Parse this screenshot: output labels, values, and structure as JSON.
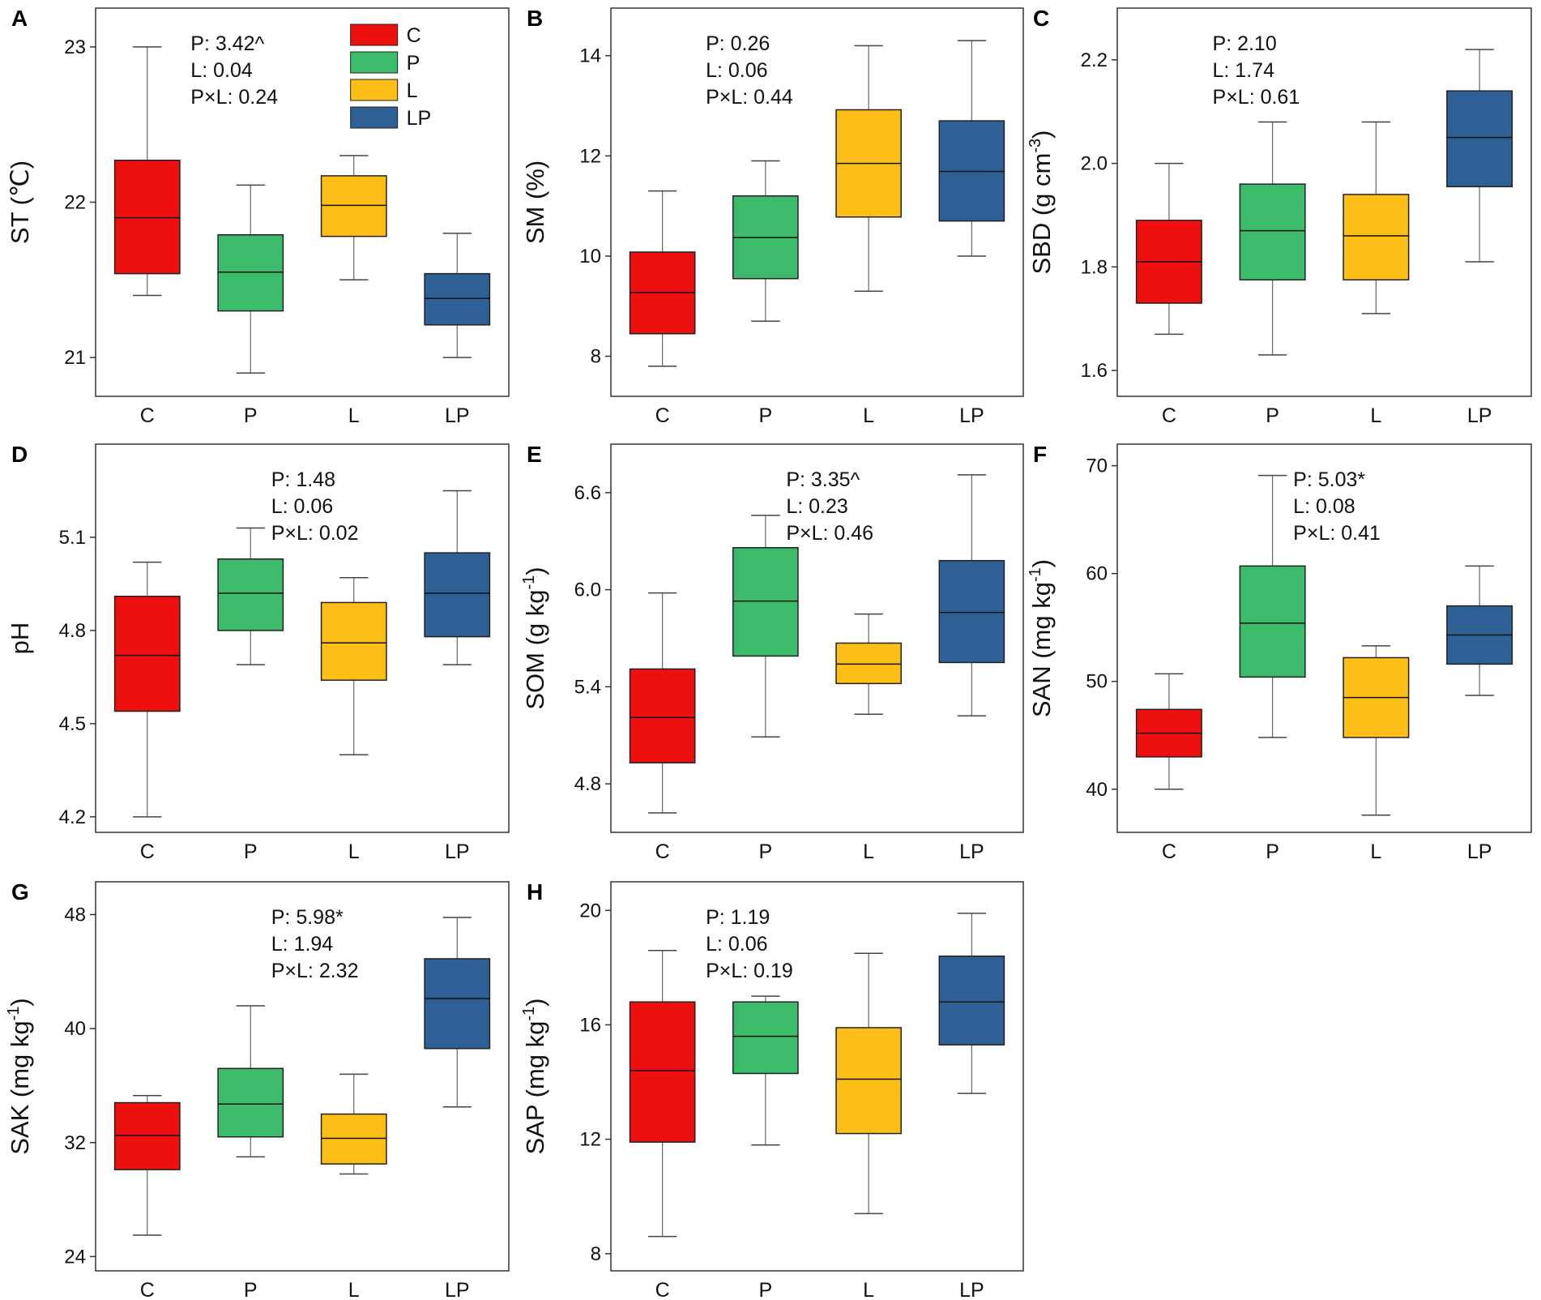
{
  "figure": {
    "legend": [
      {
        "label": "C",
        "color": "#ee0f0f"
      },
      {
        "label": "P",
        "color": "#3cbc6a"
      },
      {
        "label": "L",
        "color": "#fdbf17"
      },
      {
        "label": "LP",
        "color": "#2e5f95"
      }
    ]
  },
  "chart_data": [
    {
      "type": "box",
      "panel": "A",
      "ylabel": "ST (℃)",
      "ylabel_superscripts": [],
      "categories": [
        "C",
        "P",
        "L",
        "LP"
      ],
      "yticks": [
        21,
        22,
        23
      ],
      "ytick_labels": [
        "21",
        "22",
        "23"
      ],
      "ylim": [
        20.75,
        23.25
      ],
      "boxes": [
        {
          "min": 21.4,
          "q1": 21.54,
          "median": 21.9,
          "q3": 22.27,
          "max": 23.0
        },
        {
          "min": 20.9,
          "q1": 21.3,
          "median": 21.55,
          "q3": 21.79,
          "max": 22.11
        },
        {
          "min": 21.5,
          "q1": 21.78,
          "median": 21.98,
          "q3": 22.17,
          "max": 22.3
        },
        {
          "min": 21.0,
          "q1": 21.21,
          "median": 21.38,
          "q3": 21.54,
          "max": 21.8
        }
      ],
      "stats": [
        "P: 3.42^",
        "L: 0.04",
        "P×L: 0.24"
      ],
      "stats_pos": "top-left-center",
      "has_legend": true
    },
    {
      "type": "box",
      "panel": "B",
      "ylabel": "SM (%)",
      "ylabel_superscripts": [],
      "categories": [
        "C",
        "P",
        "L",
        "LP"
      ],
      "yticks": [
        8,
        10,
        12,
        14
      ],
      "ytick_labels": [
        "8",
        "10",
        "12",
        "14"
      ],
      "ylim": [
        7.2,
        14.95
      ],
      "boxes": [
        {
          "min": 7.8,
          "q1": 8.45,
          "median": 9.27,
          "q3": 10.08,
          "max": 11.3
        },
        {
          "min": 8.7,
          "q1": 9.55,
          "median": 10.37,
          "q3": 11.2,
          "max": 11.9
        },
        {
          "min": 9.3,
          "q1": 10.78,
          "median": 11.85,
          "q3": 12.92,
          "max": 14.2
        },
        {
          "min": 10.0,
          "q1": 10.7,
          "median": 11.69,
          "q3": 12.7,
          "max": 14.3
        }
      ],
      "stats": [
        "P: 0.26",
        "L: 0.06",
        "P×L: 0.44"
      ],
      "stats_pos": "top-left-center",
      "has_legend": false
    },
    {
      "type": "box",
      "panel": "C",
      "ylabel": "SBD (g cm-3)",
      "ylabel_superscripts": [
        "-3"
      ],
      "categories": [
        "C",
        "P",
        "L",
        "LP"
      ],
      "yticks": [
        1.6,
        1.8,
        2.0,
        2.2
      ],
      "ytick_labels": [
        "1.6",
        "1.8",
        "2.0",
        "2.2"
      ],
      "ylim": [
        1.55,
        2.3
      ],
      "boxes": [
        {
          "min": 1.67,
          "q1": 1.73,
          "median": 1.81,
          "q3": 1.89,
          "max": 2.0
        },
        {
          "min": 1.63,
          "q1": 1.775,
          "median": 1.87,
          "q3": 1.96,
          "max": 2.08
        },
        {
          "min": 1.71,
          "q1": 1.775,
          "median": 1.86,
          "q3": 1.94,
          "max": 2.08
        },
        {
          "min": 1.81,
          "q1": 1.955,
          "median": 2.05,
          "q3": 2.14,
          "max": 2.22
        }
      ],
      "stats": [
        "P: 2.10",
        "L: 1.74",
        "P×L: 0.61"
      ],
      "stats_pos": "top-left-center",
      "has_legend": false
    },
    {
      "type": "box",
      "panel": "D",
      "ylabel": "pH",
      "ylabel_superscripts": [],
      "categories": [
        "C",
        "P",
        "L",
        "LP"
      ],
      "yticks": [
        4.2,
        4.5,
        4.8,
        5.1
      ],
      "ytick_labels": [
        "4.2",
        "4.5",
        "4.8",
        "5.1"
      ],
      "ylim": [
        4.15,
        5.4
      ],
      "boxes": [
        {
          "min": 4.2,
          "q1": 4.54,
          "median": 4.72,
          "q3": 4.91,
          "max": 5.02
        },
        {
          "min": 4.69,
          "q1": 4.8,
          "median": 4.92,
          "q3": 5.03,
          "max": 5.13
        },
        {
          "min": 4.4,
          "q1": 4.64,
          "median": 4.76,
          "q3": 4.89,
          "max": 4.97
        },
        {
          "min": 4.69,
          "q1": 4.78,
          "median": 4.92,
          "q3": 5.05,
          "max": 5.25
        }
      ],
      "stats": [
        "P: 1.48",
        "L: 0.06",
        "P×L: 0.02"
      ],
      "stats_pos": "top-center",
      "has_legend": false
    },
    {
      "type": "box",
      "panel": "E",
      "ylabel": "SOM (g kg-1)",
      "ylabel_superscripts": [
        "-1"
      ],
      "categories": [
        "C",
        "P",
        "L",
        "LP"
      ],
      "yticks": [
        4.8,
        5.4,
        6.0,
        6.6
      ],
      "ytick_labels": [
        "4.8",
        "5.4",
        "6.0",
        "6.6"
      ],
      "ylim": [
        4.5,
        6.9
      ],
      "boxes": [
        {
          "min": 4.62,
          "q1": 4.93,
          "median": 5.21,
          "q3": 5.51,
          "max": 5.98
        },
        {
          "min": 5.09,
          "q1": 5.59,
          "median": 5.93,
          "q3": 6.26,
          "max": 6.46
        },
        {
          "min": 5.23,
          "q1": 5.42,
          "median": 5.54,
          "q3": 5.67,
          "max": 5.85
        },
        {
          "min": 5.22,
          "q1": 5.55,
          "median": 5.86,
          "q3": 6.18,
          "max": 6.71
        }
      ],
      "stats": [
        "P: 3.35^",
        "L: 0.23",
        "P×L: 0.46"
      ],
      "stats_pos": "top-center",
      "has_legend": false
    },
    {
      "type": "box",
      "panel": "F",
      "ylabel": "SAN (mg kg-1)",
      "ylabel_superscripts": [
        "-1"
      ],
      "categories": [
        "C",
        "P",
        "L",
        "LP"
      ],
      "yticks": [
        40,
        50,
        60,
        70
      ],
      "ytick_labels": [
        "40",
        "50",
        "60",
        "70"
      ],
      "ylim": [
        36,
        72
      ],
      "boxes": [
        {
          "min": 40.0,
          "q1": 43.0,
          "median": 45.2,
          "q3": 47.4,
          "max": 50.7
        },
        {
          "min": 44.8,
          "q1": 50.4,
          "median": 55.4,
          "q3": 60.7,
          "max": 69.1
        },
        {
          "min": 37.6,
          "q1": 44.8,
          "median": 48.5,
          "q3": 52.2,
          "max": 53.3
        },
        {
          "min": 48.7,
          "q1": 51.6,
          "median": 54.3,
          "q3": 57.0,
          "max": 60.7
        }
      ],
      "stats": [
        "P: 5.03*",
        "L: 0.08",
        "P×L: 0.41"
      ],
      "stats_pos": "top-center",
      "has_legend": false
    },
    {
      "type": "box",
      "panel": "G",
      "ylabel": "SAK (mg kg-1)",
      "ylabel_superscripts": [
        "-1"
      ],
      "categories": [
        "C",
        "P",
        "L",
        "LP"
      ],
      "yticks": [
        24,
        32,
        40,
        48
      ],
      "ytick_labels": [
        "24",
        "32",
        "40",
        "48"
      ],
      "ylim": [
        23,
        50.3
      ],
      "boxes": [
        {
          "min": 25.5,
          "q1": 30.1,
          "median": 32.5,
          "q3": 34.8,
          "max": 35.3
        },
        {
          "min": 31.0,
          "q1": 32.4,
          "median": 34.7,
          "q3": 37.2,
          "max": 41.6
        },
        {
          "min": 29.8,
          "q1": 30.5,
          "median": 32.3,
          "q3": 34.0,
          "max": 36.8
        },
        {
          "min": 34.5,
          "q1": 38.6,
          "median": 42.1,
          "q3": 44.9,
          "max": 47.8
        }
      ],
      "stats": [
        "P: 5.98*",
        "L: 1.94",
        "P×L: 2.32"
      ],
      "stats_pos": "top-center",
      "has_legend": false
    },
    {
      "type": "box",
      "panel": "H",
      "ylabel": "SAP (mg kg-1)",
      "ylabel_superscripts": [
        "-1"
      ],
      "categories": [
        "C",
        "P",
        "L",
        "LP"
      ],
      "yticks": [
        8,
        12,
        16,
        20
      ],
      "ytick_labels": [
        "8",
        "12",
        "16",
        "20"
      ],
      "ylim": [
        7.4,
        21.0
      ],
      "boxes": [
        {
          "min": 8.6,
          "q1": 11.9,
          "median": 14.4,
          "q3": 16.8,
          "max": 18.6
        },
        {
          "min": 11.8,
          "q1": 14.3,
          "median": 15.6,
          "q3": 16.8,
          "max": 17.0
        },
        {
          "min": 9.4,
          "q1": 12.2,
          "median": 14.1,
          "q3": 15.9,
          "max": 18.5
        },
        {
          "min": 13.6,
          "q1": 15.3,
          "median": 16.8,
          "q3": 18.4,
          "max": 19.9
        }
      ],
      "stats": [
        "P: 1.19",
        "L: 0.06",
        "P×L: 0.19"
      ],
      "stats_pos": "top-left-center",
      "has_legend": false
    }
  ]
}
